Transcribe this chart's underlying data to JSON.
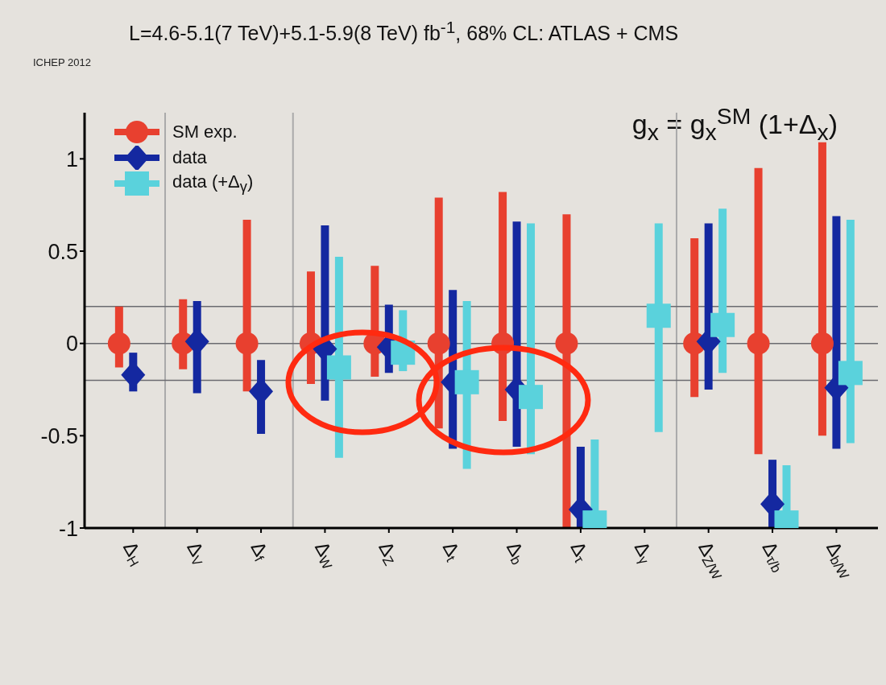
{
  "chart_data": {
    "type": "scatter",
    "title": "L=4.6-5.1(7 TeV)+5.1-5.9(8 TeV) fb$^{-1}$, 68% CL: ATLAS + CMS",
    "categories": [
      "Δ$_{H}$",
      "Δ$_{V}$",
      "Δ$_{f}$",
      "Δ$_{W}$",
      "Δ$_{Z}$",
      "Δ$_{t}$",
      "Δ$_{b}$",
      "Δ$_{τ}$",
      "Δ$_{γ}$",
      "Δ$_{Z/W}$",
      "Δ$_{τ/b}$",
      "Δ$_{b/W}$"
    ],
    "series": [
      {
        "name": "SM exp.",
        "color": "#e8402f",
        "marker": "circle",
        "values": [
          0,
          0,
          0,
          0,
          0,
          0,
          0,
          0,
          null,
          0,
          0,
          0
        ],
        "errors": [
          [
            -0.13,
            0.2
          ],
          [
            -0.14,
            0.24
          ],
          [
            -0.26,
            0.67
          ],
          [
            -0.22,
            0.39
          ],
          [
            -0.18,
            0.42
          ],
          [
            -0.46,
            0.79
          ],
          [
            -0.42,
            0.82
          ],
          [
            -1,
            0.7
          ],
          null,
          [
            -0.29,
            0.57
          ],
          [
            -0.6,
            0.95
          ],
          [
            -0.5,
            1.09
          ]
        ]
      },
      {
        "name": "data",
        "color": "#1428a0",
        "marker": "diamond",
        "values": [
          -0.17,
          0.01,
          -0.26,
          -0.03,
          -0.02,
          -0.21,
          -0.25,
          -0.9,
          null,
          0.01,
          -0.87,
          -0.24
        ],
        "errors": [
          [
            -0.26,
            -0.05
          ],
          [
            -0.27,
            0.23
          ],
          [
            -0.49,
            -0.09
          ],
          [
            -0.31,
            0.64
          ],
          [
            -0.16,
            0.21
          ],
          [
            -0.57,
            0.29
          ],
          [
            -0.56,
            0.66
          ],
          [
            -1,
            -0.56
          ],
          null,
          [
            -0.25,
            0.65
          ],
          [
            -1,
            -0.63
          ],
          [
            -0.57,
            0.69
          ]
        ]
      },
      {
        "name": "data (+Δ$_{γ}$)",
        "color": "#5ad2dc",
        "marker": "square",
        "values": [
          null,
          null,
          null,
          -0.13,
          -0.05,
          -0.21,
          -0.29,
          -0.97,
          0.15,
          0.1,
          -0.97,
          -0.16
        ],
        "errors": [
          null,
          null,
          null,
          [
            -0.62,
            0.47
          ],
          [
            -0.15,
            0.18
          ],
          [
            -0.68,
            0.23
          ],
          [
            -0.6,
            0.65
          ],
          [
            -1,
            -0.52
          ],
          [
            -0.48,
            0.65
          ],
          [
            -0.16,
            0.73
          ],
          [
            -1,
            -0.66
          ],
          [
            -0.54,
            0.67
          ]
        ]
      }
    ],
    "ylim": [
      -1,
      1.25
    ],
    "yticks": [
      -1,
      -0.5,
      0,
      0.5,
      1
    ],
    "legend": "top left",
    "ref_lines": [
      {
        "axis": "y",
        "value": 0.2,
        "color": "#6b6b70"
      },
      {
        "axis": "y",
        "value": 0,
        "color": "#6b6b70"
      },
      {
        "axis": "y",
        "value": -0.2,
        "color": "#6b6b70"
      }
    ],
    "annotations": [
      "g$_{x}$ = g$_{x}$$^{SM}$ (1+Δ$_{x}$)",
      "ICHEP 2012"
    ]
  }
}
